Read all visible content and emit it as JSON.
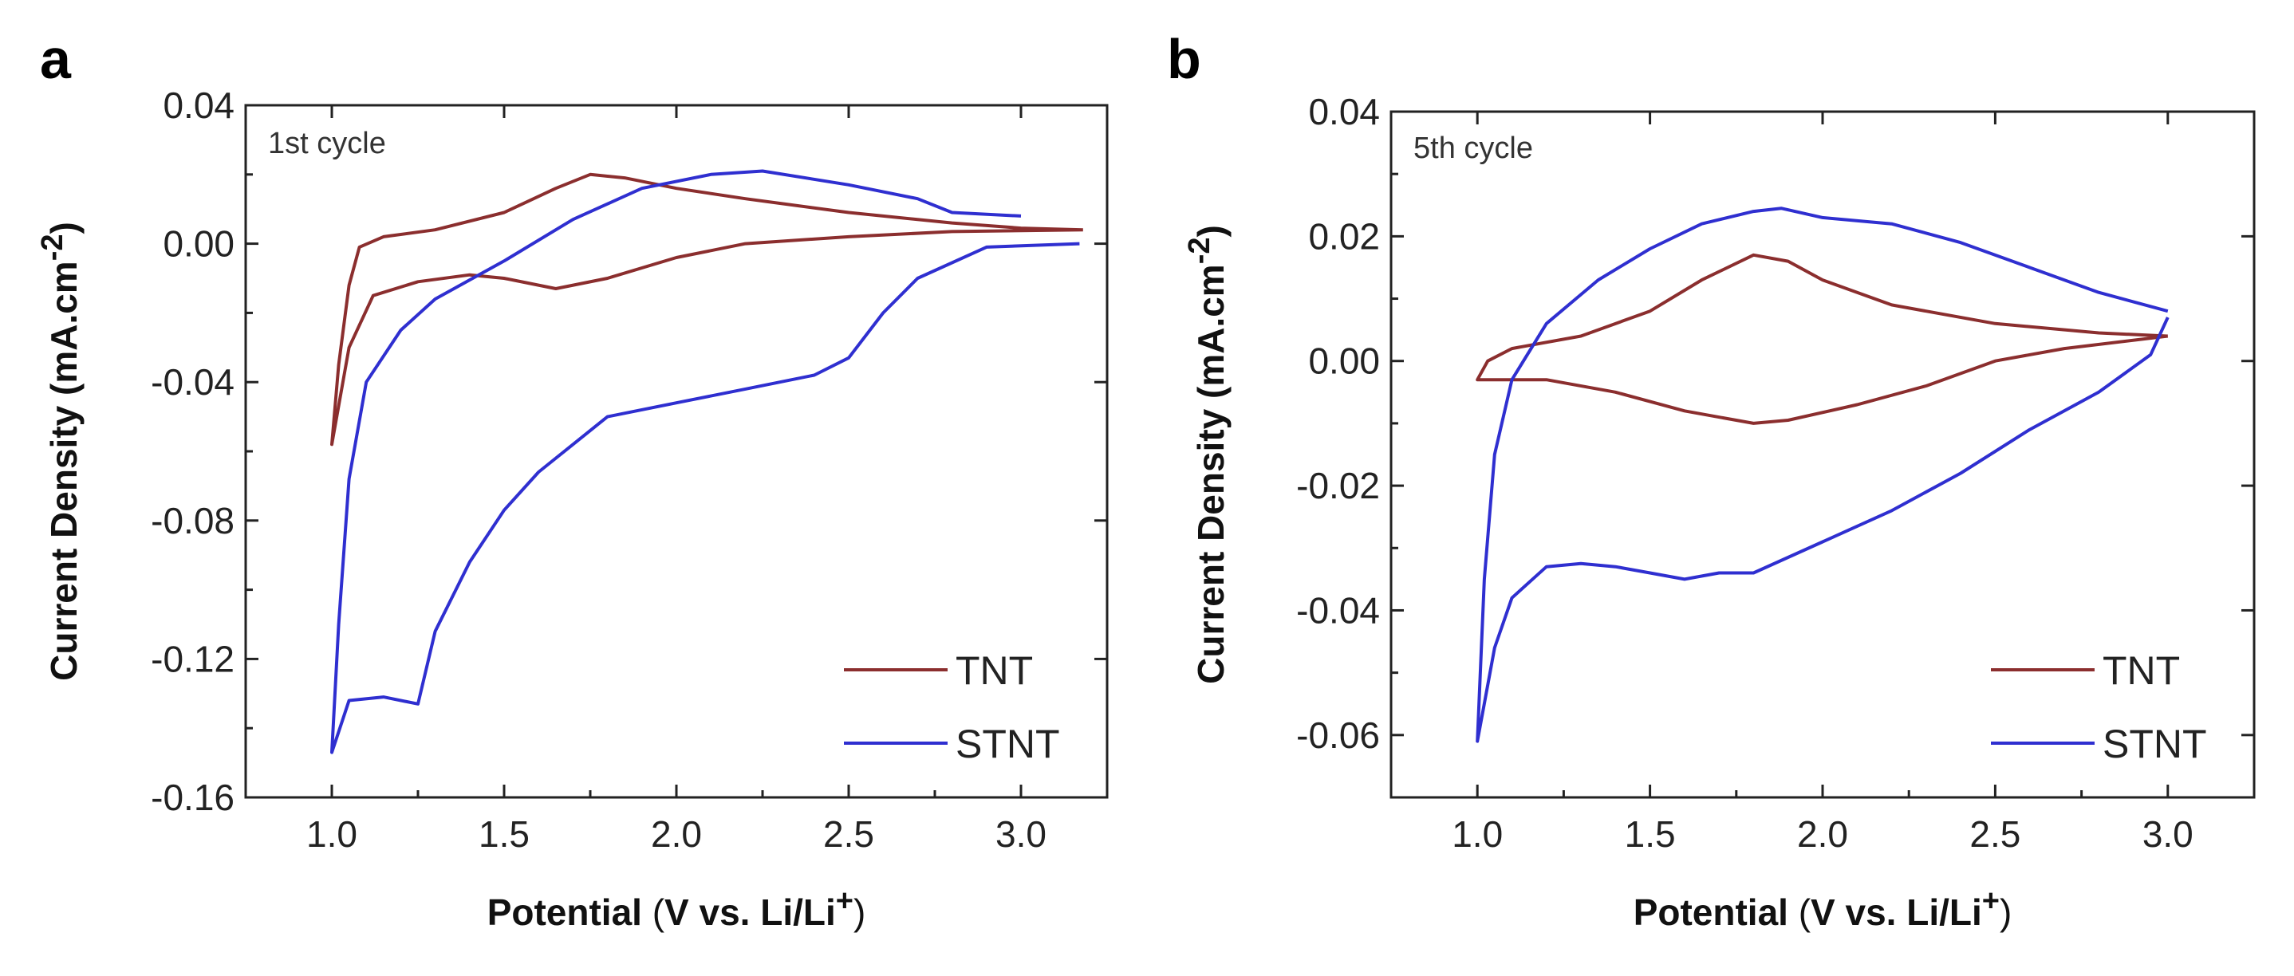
{
  "chart_data": [
    {
      "panel_label": "a",
      "type": "line",
      "title": "1st cycle",
      "xlabel": "Potential",
      "xlabel_units": "(V vs. Li/Li",
      "xlabel_sup": "+",
      "xlabel_end": ")",
      "ylabel": "Current Density (mA.cm",
      "ylabel_sup": "-2",
      "ylabel_end": ")",
      "xlim": [
        0.75,
        3.25
      ],
      "ylim": [
        -0.16,
        0.04
      ],
      "xticks": [
        "1.0",
        "1.5",
        "2.0",
        "2.5",
        "3.0"
      ],
      "xtick_values": [
        1.0,
        1.5,
        2.0,
        2.5,
        3.0
      ],
      "yticks": [
        "0.04",
        "0.00",
        "-0.04",
        "-0.08",
        "-0.12",
        "-0.16"
      ],
      "ytick_values": [
        0.04,
        0.0,
        -0.04,
        -0.08,
        -0.12,
        -0.16
      ],
      "legend": {
        "position": "bottom-right",
        "entries": [
          "TNT",
          "STNT"
        ]
      },
      "series": [
        {
          "name": "TNT",
          "color": "#8b2e2e",
          "points": [
            [
              3.18,
              0.004
            ],
            [
              2.8,
              0.0035
            ],
            [
              2.5,
              0.002
            ],
            [
              2.2,
              0.0
            ],
            [
              2.0,
              -0.004
            ],
            [
              1.8,
              -0.01
            ],
            [
              1.65,
              -0.013
            ],
            [
              1.5,
              -0.01
            ],
            [
              1.4,
              -0.009
            ],
            [
              1.25,
              -0.011
            ],
            [
              1.12,
              -0.015
            ],
            [
              1.05,
              -0.03
            ],
            [
              1.0,
              -0.058
            ],
            [
              1.02,
              -0.035
            ],
            [
              1.05,
              -0.012
            ],
            [
              1.08,
              -0.001
            ],
            [
              1.15,
              0.002
            ],
            [
              1.3,
              0.004
            ],
            [
              1.5,
              0.009
            ],
            [
              1.65,
              0.016
            ],
            [
              1.75,
              0.02
            ],
            [
              1.85,
              0.019
            ],
            [
              2.0,
              0.016
            ],
            [
              2.2,
              0.013
            ],
            [
              2.5,
              0.009
            ],
            [
              2.8,
              0.006
            ],
            [
              3.0,
              0.0045
            ],
            [
              3.18,
              0.004
            ]
          ]
        },
        {
          "name": "STNT",
          "color": "#2f2fd0",
          "points": [
            [
              3.17,
              0.0
            ],
            [
              2.9,
              -0.001
            ],
            [
              2.7,
              -0.01
            ],
            [
              2.6,
              -0.02
            ],
            [
              2.5,
              -0.033
            ],
            [
              2.4,
              -0.038
            ],
            [
              2.2,
              -0.042
            ],
            [
              2.0,
              -0.046
            ],
            [
              1.8,
              -0.05
            ],
            [
              1.7,
              -0.058
            ],
            [
              1.6,
              -0.066
            ],
            [
              1.5,
              -0.077
            ],
            [
              1.4,
              -0.092
            ],
            [
              1.3,
              -0.112
            ],
            [
              1.25,
              -0.133
            ],
            [
              1.15,
              -0.131
            ],
            [
              1.05,
              -0.132
            ],
            [
              1.0,
              -0.147
            ],
            [
              1.02,
              -0.11
            ],
            [
              1.05,
              -0.068
            ],
            [
              1.1,
              -0.04
            ],
            [
              1.2,
              -0.025
            ],
            [
              1.3,
              -0.016
            ],
            [
              1.5,
              -0.005
            ],
            [
              1.7,
              0.007
            ],
            [
              1.9,
              0.016
            ],
            [
              2.1,
              0.02
            ],
            [
              2.25,
              0.021
            ],
            [
              2.5,
              0.017
            ],
            [
              2.7,
              0.013
            ],
            [
              2.8,
              0.009
            ],
            [
              3.0,
              0.008
            ]
          ]
        }
      ]
    },
    {
      "panel_label": "b",
      "type": "line",
      "title": "5th cycle",
      "xlabel": "Potential",
      "xlabel_units": "(V vs. Li/Li",
      "xlabel_sup": "+",
      "xlabel_end": ")",
      "ylabel": "Current Density (mA.cm",
      "ylabel_sup": "-2",
      "ylabel_end": ")",
      "xlim": [
        0.75,
        3.25
      ],
      "ylim": [
        -0.07,
        0.04
      ],
      "xticks": [
        "1.0",
        "1.5",
        "2.0",
        "2.5",
        "3.0"
      ],
      "xtick_values": [
        1.0,
        1.5,
        2.0,
        2.5,
        3.0
      ],
      "yticks": [
        "0.04",
        "0.02",
        "0.00",
        "-0.02",
        "-0.04",
        "-0.06"
      ],
      "ytick_values": [
        0.04,
        0.02,
        0.0,
        -0.02,
        -0.04,
        -0.06
      ],
      "legend": {
        "position": "bottom-right",
        "entries": [
          "TNT",
          "STNT"
        ]
      },
      "series": [
        {
          "name": "TNT",
          "color": "#8b2e2e",
          "points": [
            [
              3.0,
              0.004
            ],
            [
              2.7,
              0.002
            ],
            [
              2.5,
              0.0
            ],
            [
              2.3,
              -0.004
            ],
            [
              2.1,
              -0.007
            ],
            [
              1.9,
              -0.0095
            ],
            [
              1.8,
              -0.01
            ],
            [
              1.6,
              -0.008
            ],
            [
              1.4,
              -0.005
            ],
            [
              1.2,
              -0.003
            ],
            [
              1.05,
              -0.003
            ],
            [
              1.0,
              -0.003
            ],
            [
              1.03,
              0.0
            ],
            [
              1.1,
              0.002
            ],
            [
              1.3,
              0.004
            ],
            [
              1.5,
              0.008
            ],
            [
              1.65,
              0.013
            ],
            [
              1.8,
              0.017
            ],
            [
              1.9,
              0.016
            ],
            [
              2.0,
              0.013
            ],
            [
              2.2,
              0.009
            ],
            [
              2.5,
              0.006
            ],
            [
              2.8,
              0.0045
            ],
            [
              3.0,
              0.004
            ]
          ]
        },
        {
          "name": "STNT",
          "color": "#2f2fd0",
          "points": [
            [
              3.0,
              0.007
            ],
            [
              2.95,
              0.001
            ],
            [
              2.8,
              -0.005
            ],
            [
              2.6,
              -0.011
            ],
            [
              2.4,
              -0.018
            ],
            [
              2.2,
              -0.024
            ],
            [
              2.0,
              -0.029
            ],
            [
              1.8,
              -0.034
            ],
            [
              1.7,
              -0.034
            ],
            [
              1.6,
              -0.035
            ],
            [
              1.5,
              -0.034
            ],
            [
              1.4,
              -0.033
            ],
            [
              1.3,
              -0.0325
            ],
            [
              1.2,
              -0.033
            ],
            [
              1.1,
              -0.038
            ],
            [
              1.05,
              -0.046
            ],
            [
              1.0,
              -0.061
            ],
            [
              1.02,
              -0.035
            ],
            [
              1.05,
              -0.015
            ],
            [
              1.1,
              -0.003
            ],
            [
              1.2,
              0.006
            ],
            [
              1.35,
              0.013
            ],
            [
              1.5,
              0.018
            ],
            [
              1.65,
              0.022
            ],
            [
              1.8,
              0.024
            ],
            [
              1.88,
              0.0245
            ],
            [
              2.0,
              0.023
            ],
            [
              2.2,
              0.022
            ],
            [
              2.4,
              0.019
            ],
            [
              2.6,
              0.015
            ],
            [
              2.8,
              0.011
            ],
            [
              3.0,
              0.008
            ]
          ]
        }
      ]
    }
  ]
}
